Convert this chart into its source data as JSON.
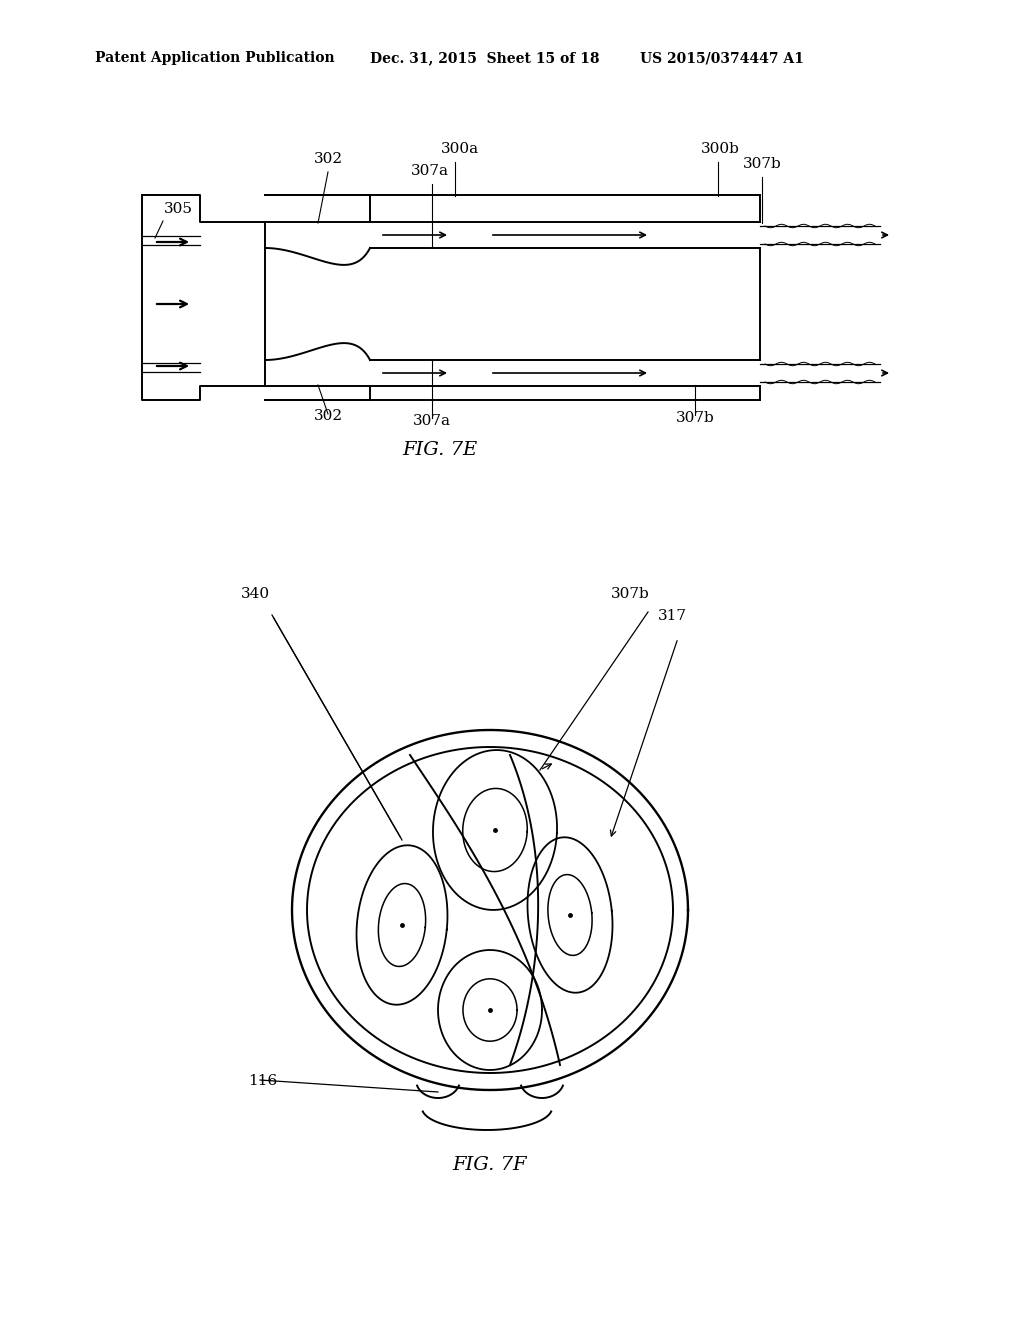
{
  "bg_color": "#ffffff",
  "header_line1": "Patent Application Publication",
  "header_line2": "Dec. 31, 2015  Sheet 15 of 18",
  "header_line3": "US 2015/0374447 A1",
  "fig7e_label": "FIG. 7E",
  "fig7f_label": "FIG. 7F",
  "black": "#000000"
}
